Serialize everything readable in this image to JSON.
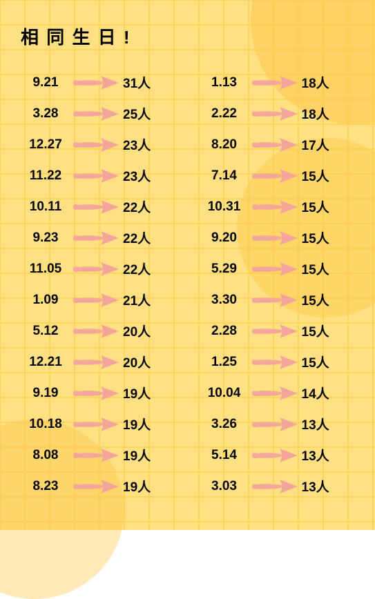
{
  "title": "相 同 生 日 !",
  "title_fontsize": 26,
  "title_color": "#000000",
  "background_color": "#ffe082",
  "grid_color": "#ffd45a",
  "blob_color": "#ffc94a",
  "arrow_color": "#f3a59c",
  "text_color": "#000000",
  "date_fontsize": 19,
  "count_fontsize": 19,
  "suffix": "人",
  "left": [
    {
      "date": "9.21",
      "count": 31
    },
    {
      "date": "3.28",
      "count": 25
    },
    {
      "date": "12.27",
      "count": 23
    },
    {
      "date": "11.22",
      "count": 23
    },
    {
      "date": "10.11",
      "count": 22
    },
    {
      "date": "9.23",
      "count": 22
    },
    {
      "date": "11.05",
      "count": 22
    },
    {
      "date": "1.09",
      "count": 21
    },
    {
      "date": "5.12",
      "count": 20
    },
    {
      "date": "12.21",
      "count": 20
    },
    {
      "date": "9.19",
      "count": 19
    },
    {
      "date": "10.18",
      "count": 19
    },
    {
      "date": "8.08",
      "count": 19
    },
    {
      "date": "8.23",
      "count": 19
    }
  ],
  "right": [
    {
      "date": "1.13",
      "count": 18
    },
    {
      "date": "2.22",
      "count": 18
    },
    {
      "date": "8.20",
      "count": 17
    },
    {
      "date": "7.14",
      "count": 15
    },
    {
      "date": "10.31",
      "count": 15
    },
    {
      "date": "9.20",
      "count": 15
    },
    {
      "date": "5.29",
      "count": 15
    },
    {
      "date": "3.30",
      "count": 15
    },
    {
      "date": "2.28",
      "count": 15
    },
    {
      "date": "1.25",
      "count": 15
    },
    {
      "date": "10.04",
      "count": 14
    },
    {
      "date": "3.26",
      "count": 13
    },
    {
      "date": "5.14",
      "count": 13
    },
    {
      "date": "3.03",
      "count": 13
    }
  ]
}
